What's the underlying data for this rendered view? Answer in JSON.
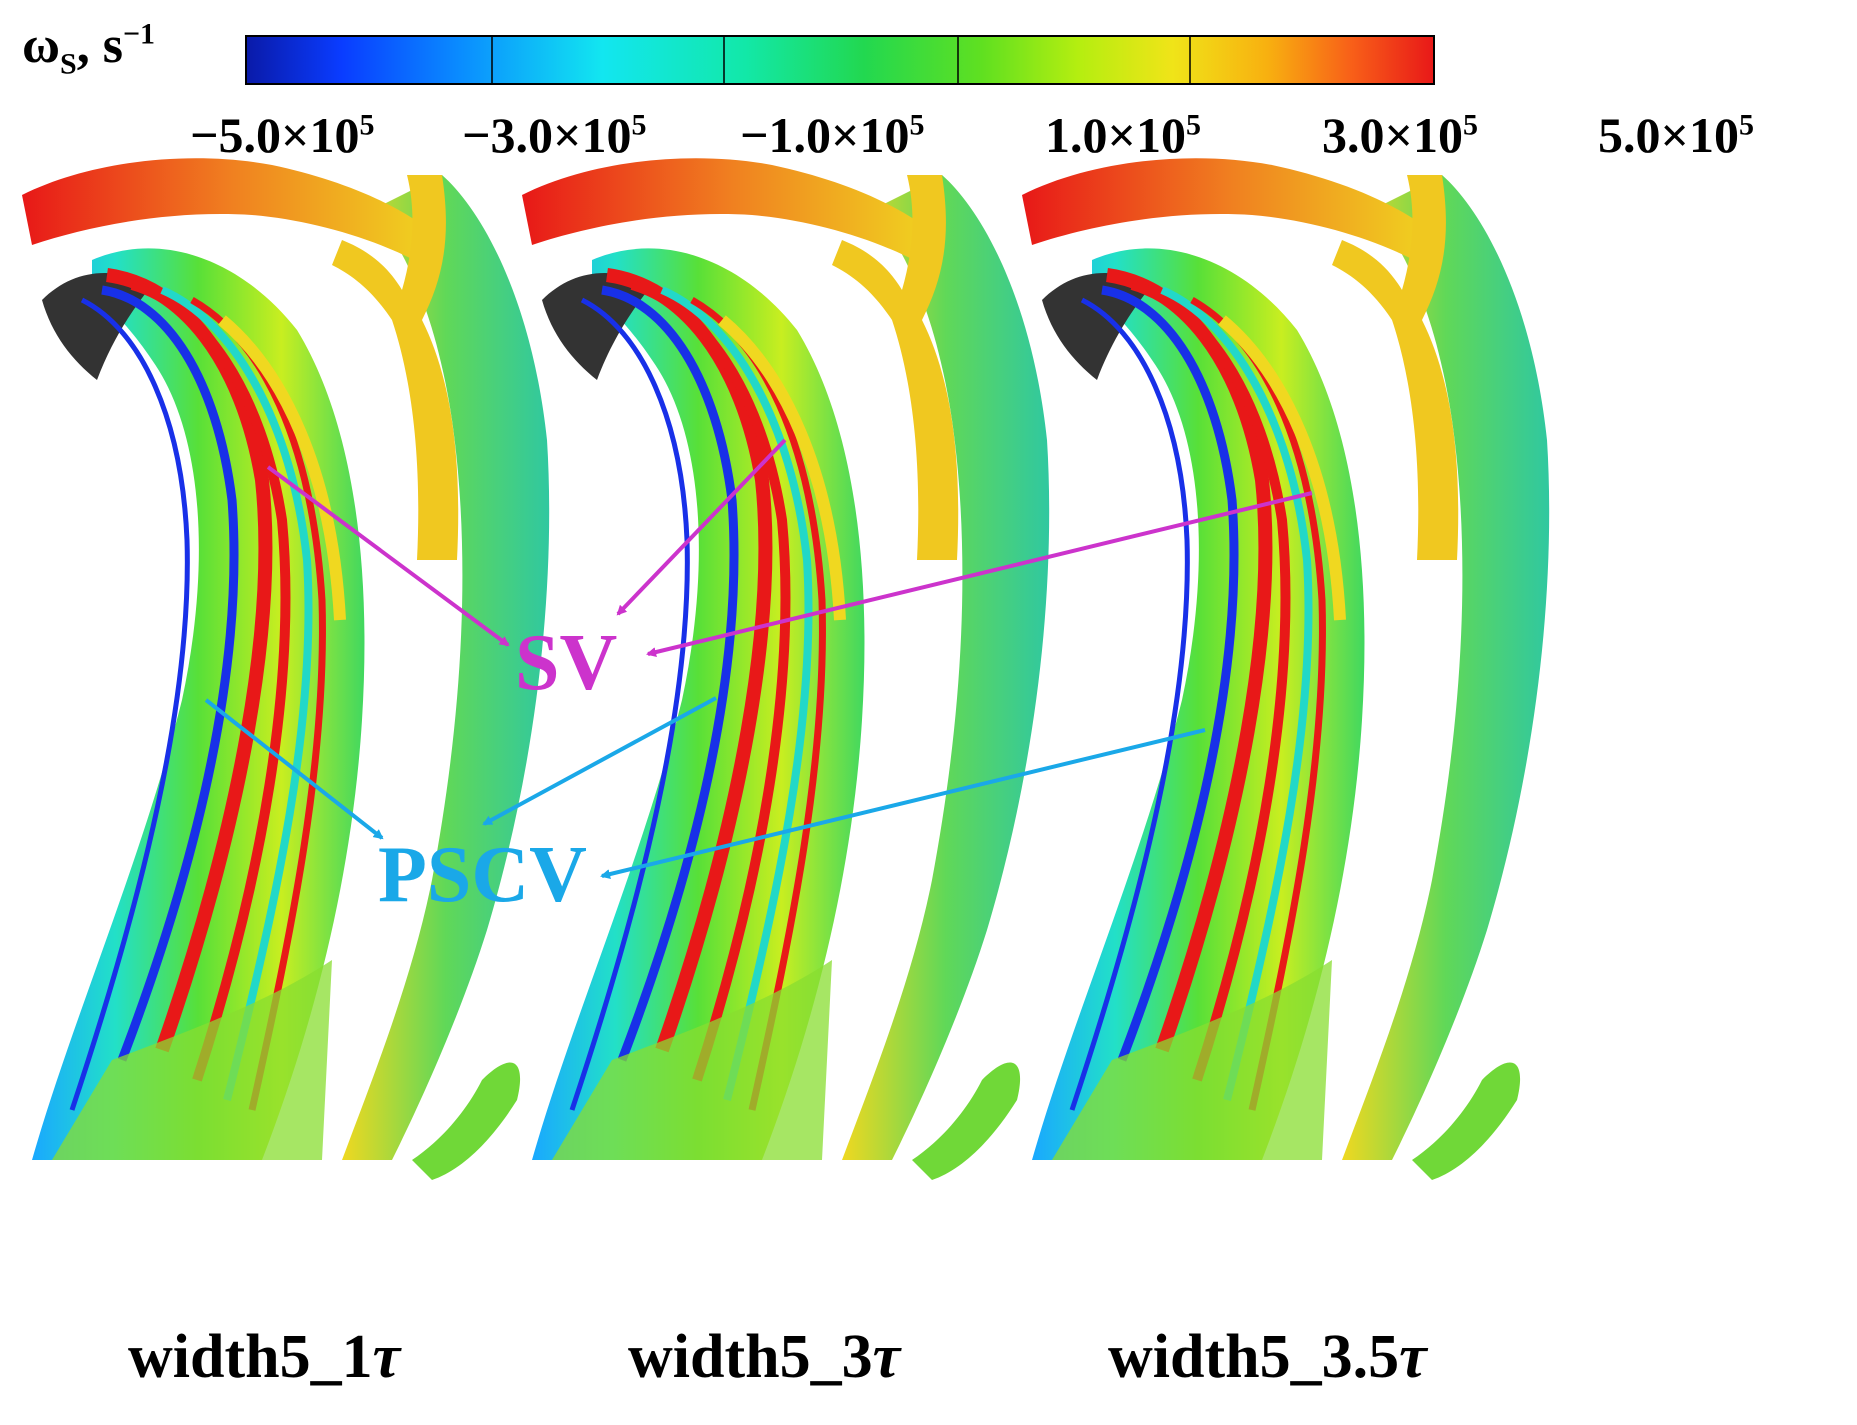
{
  "colorbar": {
    "title_symbol": "ω",
    "title_subscript": "S",
    "title_unit": ", s",
    "title_unit_exp": "−1",
    "ticks": [
      {
        "mantissa": "−5.0×10",
        "exp": "5"
      },
      {
        "mantissa": "−3.0×10",
        "exp": "5"
      },
      {
        "mantissa": "−1.0×10",
        "exp": "5"
      },
      {
        "mantissa": "1.0×10",
        "exp": "5"
      },
      {
        "mantissa": "3.0×10",
        "exp": "5"
      },
      {
        "mantissa": "5.0×10",
        "exp": "5"
      }
    ],
    "colors": [
      "#0a1aa8",
      "#0a3cff",
      "#0a8cff",
      "#12e6f0",
      "#12e8a8",
      "#22d850",
      "#60e020",
      "#b4ee10",
      "#f0e418",
      "#f8b010",
      "#f86018",
      "#e81818"
    ]
  },
  "panels": [
    {
      "label": "width5_1",
      "tau": "τ"
    },
    {
      "label": "width5_3",
      "tau": "τ"
    },
    {
      "label": "width5_3.5",
      "tau": "τ"
    }
  ],
  "annotations": {
    "sv": {
      "text": "SV",
      "color": "#cc33cc"
    },
    "pscv": {
      "text": "PSCV",
      "color": "#1aa8e8"
    }
  }
}
